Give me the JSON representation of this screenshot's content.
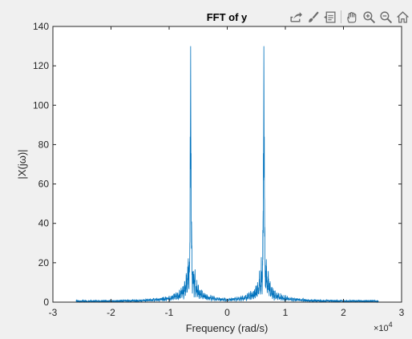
{
  "toolbar": {
    "icons": [
      "export-icon",
      "brush-icon",
      "data-tips-icon",
      "pan-icon",
      "zoom-in-icon",
      "zoom-out-icon",
      "home-icon"
    ]
  },
  "colors": {
    "line": "#0072bd",
    "axes": "#262626",
    "background": "#f0f0f0",
    "plot_background": "#ffffff"
  },
  "chart_data": {
    "type": "line",
    "title": "FFT of y",
    "xlabel": "Frequency (rad/s)",
    "ylabel": "|X(jω)|",
    "xlim": [
      -30000,
      30000
    ],
    "ylim": [
      0,
      140
    ],
    "x_multiplier": "×10",
    "x_multiplier_exp": "4",
    "xticks": [
      -30000,
      -20000,
      -10000,
      0,
      10000,
      20000,
      30000
    ],
    "xtick_labels": [
      "-3",
      "-2",
      "-1",
      "0",
      "1",
      "2",
      "3"
    ],
    "yticks": [
      0,
      20,
      40,
      60,
      80,
      100,
      120,
      140
    ],
    "ytick_labels": [
      "0",
      "20",
      "40",
      "60",
      "80",
      "100",
      "120",
      "140"
    ],
    "grid": false,
    "series": [
      {
        "x_range": [
          -26000,
          26000
        ],
        "peak_frequencies": [
          -6300,
          6300
        ],
        "peak_value": 130,
        "secondary_peak_value": 84,
        "shoulder_value": 37,
        "baseline_value": 1
      }
    ]
  }
}
